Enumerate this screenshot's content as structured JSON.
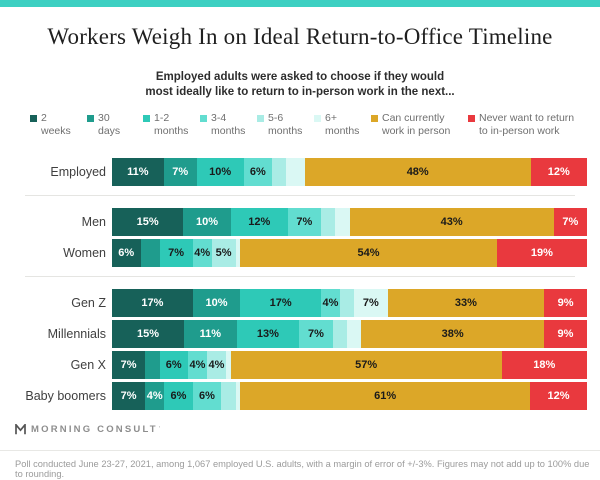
{
  "page": {
    "accent_strip_color": "#3dd0c2"
  },
  "title": "Workers Weigh In on Ideal Return-to-Office Timeline",
  "subtitle": {
    "line1": "Employed adults were asked to choose if they would",
    "line2": "most ideally like to return to in-person work in the next..."
  },
  "chart_data": {
    "type": "bar",
    "stacked": true,
    "orientation": "horizontal",
    "legend_position": "top",
    "value_format": "percent",
    "axis": {
      "range": [
        0,
        100
      ],
      "grid": false,
      "ticks_hidden": true
    },
    "series": [
      {
        "name": "2 weeks",
        "legend_lines": [
          "2",
          "weeks"
        ],
        "color": "#176159",
        "label_color": "#ffffff"
      },
      {
        "name": "30 days",
        "legend_lines": [
          "30",
          "days"
        ],
        "color": "#1f9c8d",
        "label_color": "#ffffff"
      },
      {
        "name": "1-2 months",
        "legend_lines": [
          "1-2",
          "months"
        ],
        "color": "#2ec9b7",
        "label_color": "#1a1a1a"
      },
      {
        "name": "3-4 months",
        "legend_lines": [
          "3-4",
          "months"
        ],
        "color": "#62ddd0",
        "label_color": "#1a1a1a"
      },
      {
        "name": "5-6 months",
        "legend_lines": [
          "5-6",
          "months"
        ],
        "color": "#a9ece5",
        "label_color": "#1a1a1a"
      },
      {
        "name": "6+ months",
        "legend_lines": [
          "6+",
          "months"
        ],
        "color": "#daf8f4",
        "label_color": "#1a1a1a"
      },
      {
        "name": "Can currently work in person",
        "legend_lines": [
          "Can currently",
          "work in person"
        ],
        "color": "#dca728",
        "label_color": "#1a1a1a"
      },
      {
        "name": "Never want to return to in-person work",
        "legend_lines": [
          "Never want to return",
          "to in-person work"
        ],
        "color": "#e9393e",
        "label_color": "#ffffff"
      }
    ],
    "groups": [
      [
        {
          "label": "Employed",
          "values": [
            11,
            7,
            10,
            6,
            3,
            4,
            48,
            12
          ],
          "shown": [
            true,
            true,
            true,
            true,
            false,
            false,
            true,
            true
          ]
        }
      ],
      [
        {
          "label": "Men",
          "values": [
            15,
            10,
            12,
            7,
            3,
            3,
            43,
            7
          ],
          "shown": [
            true,
            true,
            true,
            true,
            false,
            false,
            true,
            true
          ]
        },
        {
          "label": "Women",
          "values": [
            6,
            4,
            7,
            4,
            5,
            1,
            54,
            19
          ],
          "shown": [
            true,
            false,
            true,
            true,
            true,
            false,
            true,
            true
          ]
        }
      ],
      [
        {
          "label": "Gen Z",
          "values": [
            17,
            10,
            17,
            4,
            3,
            7,
            33,
            9
          ],
          "shown": [
            true,
            true,
            true,
            true,
            false,
            true,
            true,
            true
          ]
        },
        {
          "label": "Millennials",
          "values": [
            15,
            11,
            13,
            7,
            3,
            3,
            38,
            9
          ],
          "shown": [
            true,
            true,
            true,
            true,
            false,
            false,
            true,
            true
          ]
        },
        {
          "label": "Gen X",
          "values": [
            7,
            3,
            6,
            4,
            4,
            1,
            57,
            18
          ],
          "shown": [
            true,
            false,
            true,
            true,
            true,
            false,
            true,
            true
          ]
        },
        {
          "label": "Baby boomers",
          "values": [
            7,
            4,
            6,
            6,
            3,
            1,
            61,
            12
          ],
          "shown": [
            true,
            true,
            true,
            true,
            false,
            false,
            true,
            true
          ]
        }
      ]
    ]
  },
  "footer": {
    "logo_text": "MORNING CONSULT",
    "logo_tick": "'",
    "footnote": "Poll conducted June 23-27, 2021, among 1,067 employed U.S. adults, with a margin of error of +/-3%. Figures may not add up to 100% due to rounding."
  }
}
